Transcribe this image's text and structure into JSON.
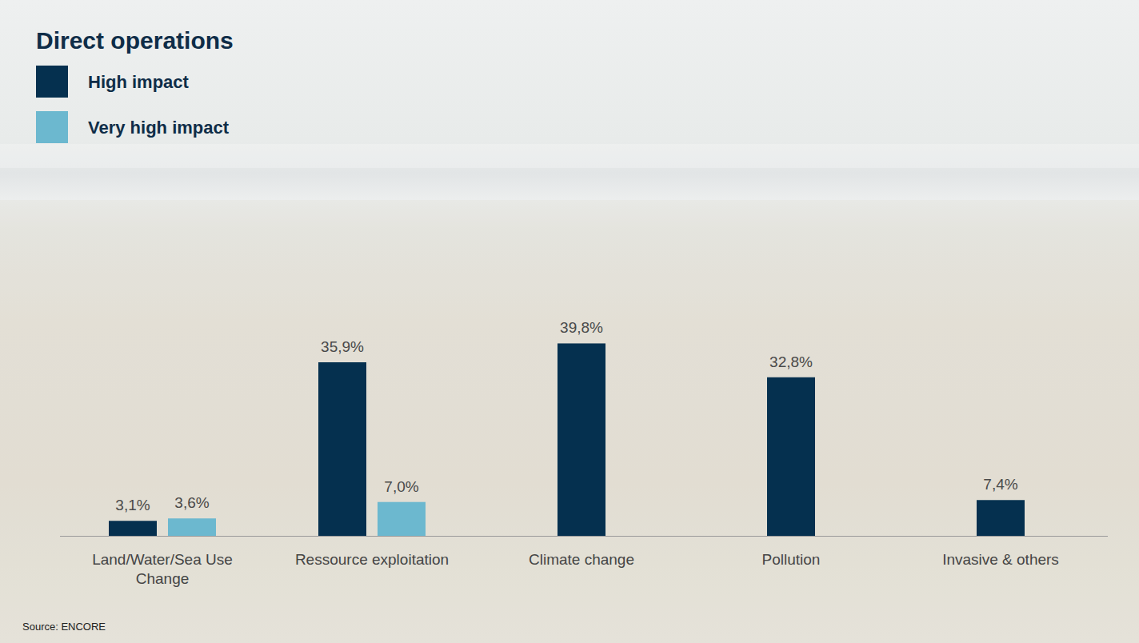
{
  "chart_data": {
    "type": "bar",
    "title": "Direct operations",
    "source": "Source: ENCORE",
    "categories": [
      "Land/Water/Sea Use Change",
      "Ressource exploitation",
      "Climate change",
      "Pollution",
      "Invasive & others"
    ],
    "series": [
      {
        "name": "High impact",
        "color": "#05304f",
        "values": [
          3.1,
          35.9,
          39.8,
          32.8,
          7.4
        ],
        "value_labels": [
          "3,1%",
          "35,9%",
          "39,8%",
          "32,8%",
          "7,4%"
        ]
      },
      {
        "name": "Very high impact",
        "color": "#6cb8cf",
        "values": [
          3.6,
          7.0,
          null,
          null,
          null
        ],
        "value_labels": [
          "3,6%",
          "7,0%",
          null,
          null,
          null
        ]
      }
    ],
    "ylim": [
      0,
      45
    ],
    "legend": "top-left",
    "data_labels": true,
    "tick_labels": "x",
    "grid": false
  }
}
